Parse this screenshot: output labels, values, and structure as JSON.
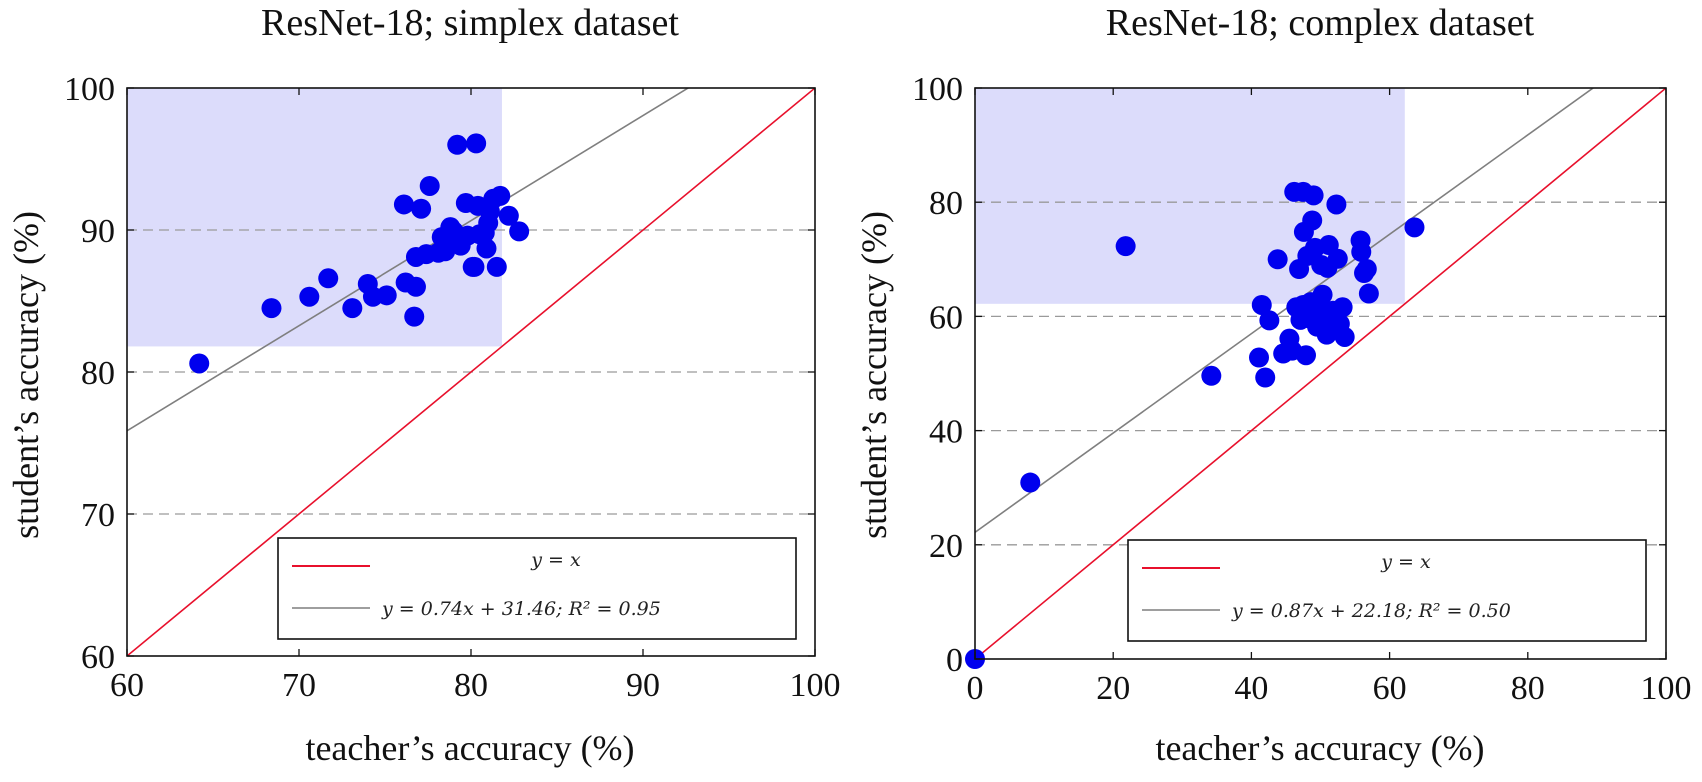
{
  "chart_data": [
    {
      "type": "scatter",
      "title": "ResNet-18; simplex dataset",
      "xlabel": "teacher’s accuracy (%)",
      "ylabel": "student’s accuracy (%)",
      "xlim": [
        60,
        100
      ],
      "ylim": [
        60,
        100
      ],
      "xticks": [
        60,
        70,
        80,
        90,
        100
      ],
      "yticks": [
        60,
        70,
        80,
        90,
        100
      ],
      "grid_y": [
        70,
        80,
        90
      ],
      "shaded_region": {
        "x": [
          60,
          81.8
        ],
        "y": [
          81.8,
          100
        ]
      },
      "identity_line": {
        "label": "y = x",
        "color": "#e8102c"
      },
      "fit_line": {
        "slope": 0.74,
        "intercept": 31.46,
        "label": "y = 0.74x + 31.46; R² = 0.95",
        "color": "#7f7f7f"
      },
      "legend_position": "bottom-right",
      "marker_color": "#0000ee",
      "points": [
        [
          64.2,
          80.6
        ],
        [
          68.4,
          84.5
        ],
        [
          70.6,
          85.3
        ],
        [
          71.7,
          86.6
        ],
        [
          73.1,
          84.5
        ],
        [
          74.0,
          86.2
        ],
        [
          74.3,
          85.3
        ],
        [
          75.1,
          85.4
        ],
        [
          76.2,
          86.3
        ],
        [
          76.1,
          91.8
        ],
        [
          76.8,
          86.0
        ],
        [
          76.7,
          83.9
        ],
        [
          76.8,
          88.1
        ],
        [
          77.1,
          91.5
        ],
        [
          77.4,
          88.3
        ],
        [
          77.6,
          93.1
        ],
        [
          78.1,
          88.4
        ],
        [
          78.3,
          89.5
        ],
        [
          78.5,
          88.5
        ],
        [
          78.8,
          90.2
        ],
        [
          79.1,
          89.2
        ],
        [
          79.2,
          96.0
        ],
        [
          79.4,
          88.9
        ],
        [
          79.7,
          91.9
        ],
        [
          79.8,
          89.6
        ],
        [
          80.1,
          87.4
        ],
        [
          80.3,
          96.1
        ],
        [
          80.4,
          91.7
        ],
        [
          80.5,
          89.7
        ],
        [
          80.8,
          89.8
        ],
        [
          81.1,
          91.3
        ],
        [
          81.3,
          92.2
        ],
        [
          81.5,
          87.4
        ],
        [
          81.7,
          92.4
        ],
        [
          82.2,
          91.0
        ],
        [
          82.8,
          89.9
        ],
        [
          80.2,
          87.4
        ],
        [
          79.0,
          89.9
        ],
        [
          80.9,
          88.7
        ],
        [
          81.0,
          90.5
        ]
      ]
    },
    {
      "type": "scatter",
      "title": "ResNet-18; complex dataset",
      "xlabel": "teacher’s accuracy (%)",
      "ylabel": "student’s accuracy (%)",
      "xlim": [
        0,
        100
      ],
      "ylim": [
        0,
        100
      ],
      "xticks": [
        0,
        20,
        40,
        60,
        80,
        100
      ],
      "yticks": [
        0,
        20,
        40,
        60,
        80,
        100
      ],
      "grid_y": [
        20,
        40,
        60,
        80
      ],
      "shaded_region": {
        "x": [
          0,
          62.2
        ],
        "y": [
          62.2,
          100
        ]
      },
      "identity_line": {
        "label": "y = x",
        "color": "#e8102c"
      },
      "fit_line": {
        "slope": 0.87,
        "intercept": 22.18,
        "label": "y = 0.87x + 22.18; R² = 0.50",
        "color": "#7f7f7f"
      },
      "legend_position": "bottom-right",
      "marker_color": "#0000ee",
      "points": [
        [
          0.0,
          0.0
        ],
        [
          8.0,
          30.9
        ],
        [
          21.8,
          72.3
        ],
        [
          34.2,
          49.6
        ],
        [
          41.1,
          52.8
        ],
        [
          41.5,
          62.0
        ],
        [
          42.0,
          49.3
        ],
        [
          42.6,
          59.3
        ],
        [
          43.8,
          70.0
        ],
        [
          44.6,
          53.5
        ],
        [
          45.5,
          56.1
        ],
        [
          45.9,
          54.0
        ],
        [
          46.2,
          81.8
        ],
        [
          46.5,
          61.6
        ],
        [
          46.9,
          68.3
        ],
        [
          47.1,
          59.4
        ],
        [
          47.5,
          81.8
        ],
        [
          47.6,
          74.8
        ],
        [
          47.9,
          53.2
        ],
        [
          48.1,
          70.6
        ],
        [
          48.3,
          59.7
        ],
        [
          48.6,
          62.5
        ],
        [
          48.8,
          76.8
        ],
        [
          49.0,
          81.2
        ],
        [
          49.2,
          72.0
        ],
        [
          49.5,
          58.2
        ],
        [
          49.8,
          61.6
        ],
        [
          50.1,
          69.0
        ],
        [
          50.3,
          63.8
        ],
        [
          50.6,
          59.7
        ],
        [
          50.9,
          56.8
        ],
        [
          51.2,
          72.5
        ],
        [
          51.4,
          57.4
        ],
        [
          51.8,
          61.0
        ],
        [
          52.3,
          79.6
        ],
        [
          52.5,
          70.1
        ],
        [
          52.8,
          58.7
        ],
        [
          53.2,
          61.6
        ],
        [
          53.5,
          56.4
        ],
        [
          55.8,
          73.3
        ],
        [
          55.9,
          71.3
        ],
        [
          56.3,
          67.6
        ],
        [
          56.7,
          68.3
        ],
        [
          57.0,
          64.0
        ],
        [
          63.6,
          75.6
        ],
        [
          47.5,
          62.0
        ],
        [
          49.9,
          60.5
        ],
        [
          51.0,
          68.5
        ]
      ]
    }
  ]
}
